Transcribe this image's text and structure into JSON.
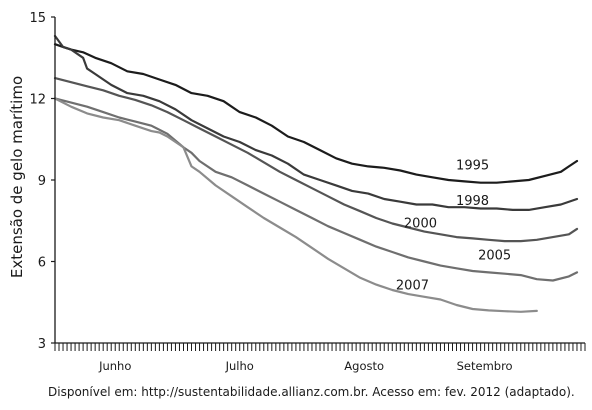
{
  "chart_data": {
    "type": "line",
    "title": "",
    "xlabel": "",
    "ylabel": "Extensão de gelo marítimo",
    "ylim": [
      3,
      15
    ],
    "yticks": [
      3,
      6,
      9,
      12,
      15
    ],
    "xlim": [
      0,
      132
    ],
    "x_unit": "days since 1 June",
    "x_month_labels": [
      {
        "label": "Junho",
        "x": 15
      },
      {
        "label": "Julho",
        "x": 46
      },
      {
        "label": "Agosto",
        "x": 77
      },
      {
        "label": "Setembro",
        "x": 107
      }
    ],
    "series": [
      {
        "name": "1995",
        "color": "#1c1c1c",
        "x": [
          0,
          2,
          4,
          7,
          10,
          14,
          18,
          22,
          26,
          30,
          34,
          38,
          42,
          46,
          50,
          54,
          58,
          62,
          66,
          70,
          74,
          78,
          82,
          86,
          90,
          94,
          98,
          102,
          106,
          110,
          114,
          118,
          122,
          126,
          128,
          130
        ],
        "y": [
          14.0,
          13.9,
          13.8,
          13.7,
          13.5,
          13.3,
          13.0,
          12.9,
          12.7,
          12.5,
          12.2,
          12.1,
          11.9,
          11.5,
          11.3,
          11.0,
          10.6,
          10.4,
          10.1,
          9.8,
          9.6,
          9.5,
          9.45,
          9.35,
          9.2,
          9.1,
          9.0,
          8.95,
          8.9,
          8.9,
          8.95,
          9.0,
          9.15,
          9.3,
          9.5,
          9.7
        ]
      },
      {
        "name": "1998",
        "color": "#3a3a3a",
        "x": [
          0,
          2,
          4,
          7,
          8,
          10,
          14,
          18,
          22,
          26,
          30,
          34,
          38,
          42,
          46,
          50,
          54,
          58,
          62,
          66,
          70,
          74,
          78,
          82,
          86,
          90,
          94,
          98,
          102,
          106,
          110,
          114,
          118,
          122,
          126,
          130
        ],
        "y": [
          14.3,
          13.9,
          13.8,
          13.5,
          13.1,
          12.9,
          12.5,
          12.2,
          12.1,
          11.9,
          11.6,
          11.2,
          10.9,
          10.6,
          10.4,
          10.1,
          9.9,
          9.6,
          9.2,
          9.0,
          8.8,
          8.6,
          8.5,
          8.3,
          8.2,
          8.1,
          8.1,
          8.0,
          8.0,
          7.95,
          7.95,
          7.9,
          7.9,
          8.0,
          8.1,
          8.3
        ]
      },
      {
        "name": "2000",
        "color": "#555555",
        "x": [
          0,
          4,
          8,
          12,
          16,
          20,
          24,
          28,
          32,
          36,
          40,
          44,
          48,
          52,
          56,
          60,
          64,
          68,
          72,
          76,
          80,
          84,
          88,
          92,
          96,
          100,
          104,
          108,
          112,
          116,
          120,
          124,
          128,
          130
        ],
        "y": [
          12.75,
          12.6,
          12.45,
          12.3,
          12.1,
          11.95,
          11.75,
          11.5,
          11.2,
          10.9,
          10.6,
          10.3,
          10.0,
          9.65,
          9.3,
          9.0,
          8.7,
          8.4,
          8.1,
          7.85,
          7.6,
          7.4,
          7.25,
          7.1,
          7.0,
          6.9,
          6.85,
          6.8,
          6.75,
          6.75,
          6.8,
          6.9,
          7.0,
          7.2
        ]
      },
      {
        "name": "2005",
        "color": "#6f6f6f",
        "x": [
          0,
          4,
          8,
          12,
          16,
          20,
          24,
          28,
          32,
          34,
          36,
          40,
          44,
          48,
          52,
          56,
          60,
          64,
          68,
          72,
          76,
          80,
          84,
          88,
          92,
          96,
          100,
          104,
          108,
          112,
          116,
          120,
          124,
          128,
          130
        ],
        "y": [
          12.0,
          11.85,
          11.7,
          11.5,
          11.3,
          11.15,
          11.0,
          10.7,
          10.2,
          10.0,
          9.7,
          9.3,
          9.1,
          8.8,
          8.5,
          8.2,
          7.9,
          7.6,
          7.3,
          7.05,
          6.8,
          6.55,
          6.35,
          6.15,
          6.0,
          5.85,
          5.75,
          5.65,
          5.6,
          5.55,
          5.5,
          5.35,
          5.3,
          5.45,
          5.6
        ]
      },
      {
        "name": "2007",
        "color": "#8c8c8c",
        "x": [
          0,
          4,
          8,
          12,
          16,
          20,
          24,
          26,
          28,
          32,
          34,
          36,
          40,
          44,
          48,
          52,
          56,
          60,
          64,
          68,
          72,
          76,
          80,
          84,
          88,
          92,
          96,
          100,
          104,
          108,
          112,
          116,
          120
        ],
        "y": [
          12.0,
          11.7,
          11.45,
          11.3,
          11.2,
          11.0,
          10.8,
          10.75,
          10.6,
          10.2,
          9.5,
          9.3,
          8.8,
          8.4,
          8.0,
          7.6,
          7.25,
          6.9,
          6.5,
          6.1,
          5.75,
          5.4,
          5.15,
          4.95,
          4.8,
          4.7,
          4.6,
          4.4,
          4.25,
          4.2,
          4.17,
          4.15,
          4.18
        ]
      }
    ],
    "source": "Disponível em: http://sustentabilidade.allianz.com.br. Acesso em: fev. 2012 (adaptado)."
  }
}
